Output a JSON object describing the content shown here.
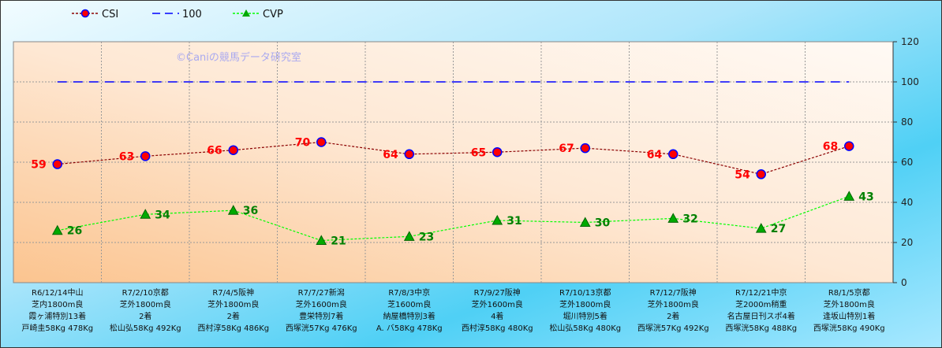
{
  "chart_data": {
    "type": "line",
    "watermark": "©Caniの競馬データ研究室",
    "categories": [
      [
        "R6/12/14中山",
        "芝内1800m良",
        "霞ヶ浦特別13着",
        "戸崎圭58Kg 478Kg"
      ],
      [
        "R7/2/10京都",
        "芝外1800m良",
        "2着",
        "松山弘58Kg 492Kg"
      ],
      [
        "R7/4/5阪神",
        "芝外1800m良",
        "2着",
        "西村淳58Kg 486Kg"
      ],
      [
        "R7/7/27新潟",
        "芝外1600m良",
        "豊栄特別7着",
        "西塚洸57Kg 476Kg"
      ],
      [
        "R7/8/3中京",
        "芝1600m良",
        "納屋橋特別3着",
        "A. バ58Kg 478Kg"
      ],
      [
        "R7/9/27阪神",
        "芝外1600m良",
        "4着",
        "西村淳58Kg 480Kg"
      ],
      [
        "R7/10/13京都",
        "芝外1800m良",
        "堀川特別5着",
        "松山弘58Kg 480Kg"
      ],
      [
        "R7/12/7阪神",
        "芝外1800m良",
        "2着",
        "西塚洸57Kg 492Kg"
      ],
      [
        "R7/12/21中京",
        "芝2000m稍重",
        "名古屋日刊スポ4着",
        "西塚洸58Kg 488Kg"
      ],
      [
        "R8/1/5京都",
        "芝外1800m良",
        "逢坂山特別1着",
        "西塚洸58Kg 490Kg"
      ]
    ],
    "series": [
      {
        "name": "CSI",
        "values": [
          59,
          63,
          66,
          70,
          64,
          65,
          67,
          64,
          54,
          68
        ],
        "color": "#8b0000",
        "marker": "circle",
        "marker_fill": "#ff0000",
        "marker_stroke": "#0000ff",
        "label_color": "#ff0000"
      },
      {
        "name": "100",
        "values": [
          100,
          100,
          100,
          100,
          100,
          100,
          100,
          100,
          100,
          100
        ],
        "color": "#0000ff",
        "marker": "none"
      },
      {
        "name": "CVP",
        "values": [
          26,
          34,
          36,
          21,
          23,
          31,
          30,
          32,
          27,
          43
        ],
        "color": "#00ff00",
        "marker": "triangle",
        "marker_fill": "#00aa00",
        "label_color": "#008000"
      }
    ],
    "y_axis": {
      "position": "right",
      "ylim": [
        0,
        120
      ],
      "ticks": [
        0,
        20,
        40,
        60,
        80,
        100,
        120
      ]
    },
    "grid": true,
    "legend": "top-left"
  }
}
